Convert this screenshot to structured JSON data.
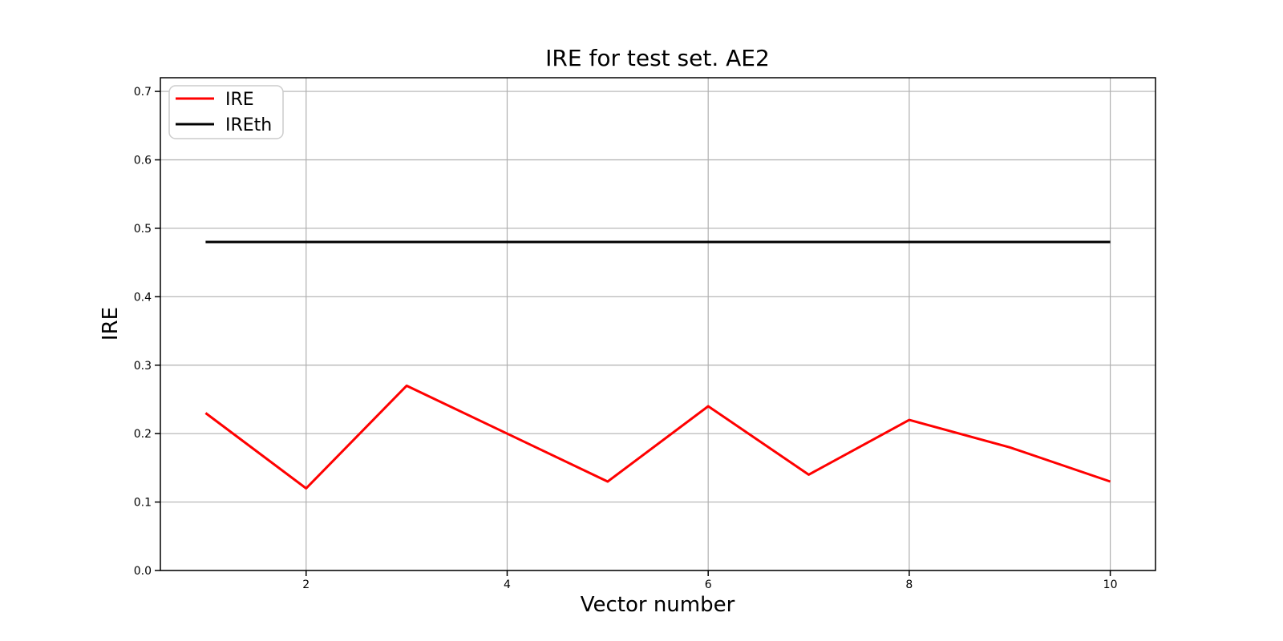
{
  "chart_data": {
    "type": "line",
    "title": "IRE for test set. AE2",
    "xlabel": "Vector number",
    "ylabel": "IRE",
    "x": [
      1,
      2,
      3,
      4,
      5,
      6,
      7,
      8,
      9,
      10
    ],
    "series": [
      {
        "name": "IRE",
        "color": "#ff0000",
        "linewidth": 3,
        "values": [
          0.23,
          0.12,
          0.27,
          0.2,
          0.13,
          0.24,
          0.14,
          0.22,
          0.18,
          0.13
        ]
      },
      {
        "name": "IREth",
        "color": "#000000",
        "linewidth": 3,
        "values": [
          0.48,
          0.48,
          0.48,
          0.48,
          0.48,
          0.48,
          0.48,
          0.48,
          0.48,
          0.48
        ]
      }
    ],
    "xlim": [
      0.55,
      10.45
    ],
    "ylim": [
      0,
      0.72
    ],
    "xtick_values": [
      2,
      4,
      6,
      8,
      10
    ],
    "xtick_labels": [
      "2",
      "4",
      "6",
      "8",
      "10"
    ],
    "ytick_values": [
      0.0,
      0.1,
      0.2,
      0.3,
      0.4,
      0.5,
      0.6,
      0.7
    ],
    "ytick_labels": [
      "0.0",
      "0.1",
      "0.2",
      "0.3",
      "0.4",
      "0.5",
      "0.6",
      "0.7"
    ],
    "grid": true,
    "grid_color": "#b0b0b0",
    "axis_color": "#000000",
    "background_color": "#ffffff",
    "legend": {
      "position": "upper-left",
      "entries": [
        "IRE",
        "IREth"
      ]
    }
  }
}
